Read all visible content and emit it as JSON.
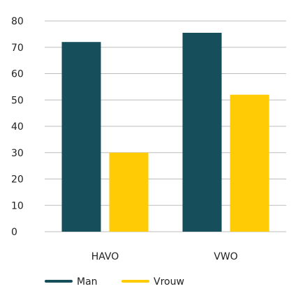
{
  "chart_data": {
    "type": "bar",
    "categories": [
      "HAVO",
      "VWO"
    ],
    "series": [
      {
        "name": "Man",
        "values": [
          72,
          75.5
        ],
        "color": "#164f5b"
      },
      {
        "name": "Vrouw",
        "values": [
          30,
          52
        ],
        "color": "#ffcb05"
      }
    ],
    "ylim": [
      0,
      80
    ],
    "yticks": [
      0,
      10,
      20,
      30,
      40,
      50,
      60,
      70,
      80
    ],
    "title": "",
    "xlabel": "",
    "ylabel": "",
    "grid": true,
    "gridColor": "#bdbdbd",
    "legend": "bottom-left"
  }
}
